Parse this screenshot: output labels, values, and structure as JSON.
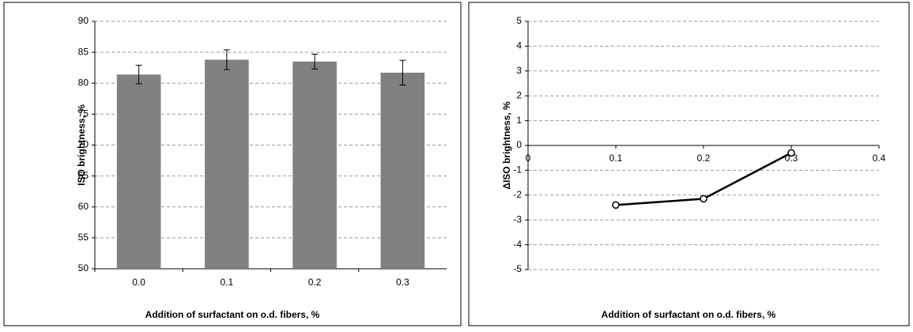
{
  "chart_data": [
    {
      "type": "bar",
      "ylabel": "ISO brightness, %",
      "xlabel": "Addition of surfactant on o.d. fibers, %",
      "categories": [
        "0.0",
        "0.1",
        "0.2",
        "0.3"
      ],
      "values": [
        81.4,
        83.8,
        83.5,
        81.7
      ],
      "errors": [
        1.5,
        1.6,
        1.2,
        2.0
      ],
      "color": "#808080",
      "ylim": [
        50,
        90
      ],
      "yticks": [
        50,
        55,
        60,
        65,
        70,
        75,
        80,
        85,
        90
      ],
      "grid": true
    },
    {
      "type": "line",
      "ylabel": "ΔISO brightness, %",
      "xlabel": "Addition of surfactant on o.d. fibers, %",
      "x": [
        0.1,
        0.2,
        0.3
      ],
      "values": [
        -2.4,
        -2.15,
        -0.3
      ],
      "color": "#000000",
      "xlim": [
        0,
        0.4
      ],
      "xticks": [
        0,
        0.1,
        0.2,
        0.3,
        0.4
      ],
      "ylim": [
        -5,
        5
      ],
      "yticks": [
        -5,
        -4,
        -3,
        -2,
        -1,
        0,
        1,
        2,
        3,
        4,
        5
      ],
      "grid": true
    }
  ]
}
